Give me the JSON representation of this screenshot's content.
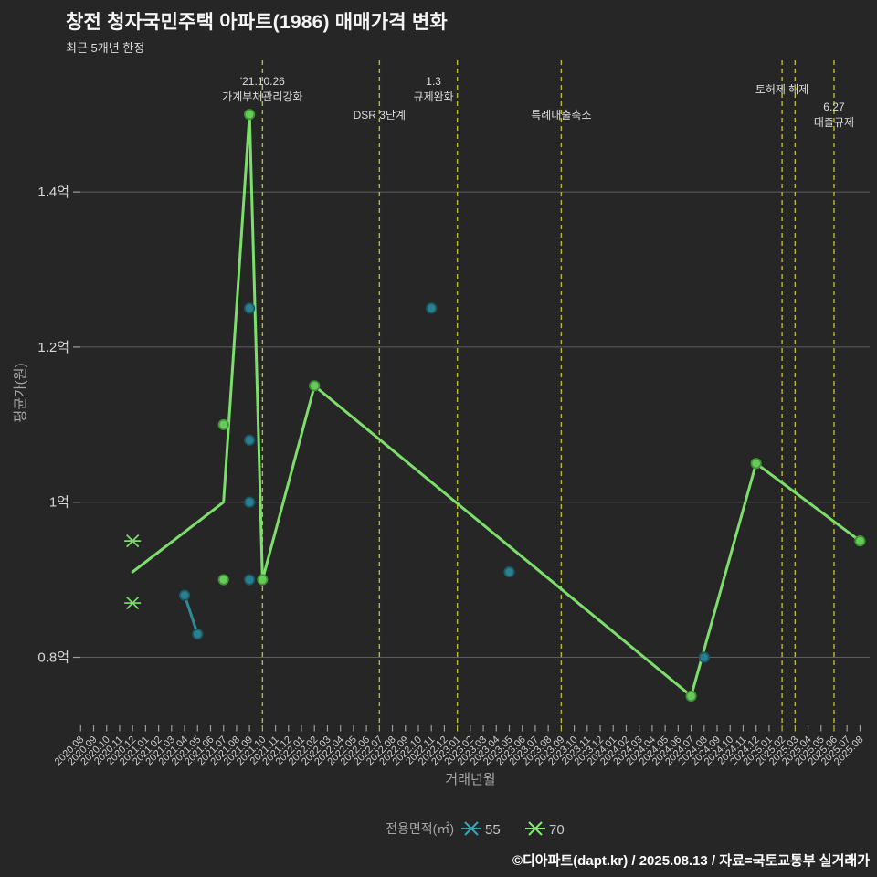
{
  "header": {
    "title": "창전 청자국민주택 아파트(1986) 매매가격 변화",
    "subtitle": "최근 5개년 한정"
  },
  "footer": {
    "credit": "©디아파트(dapt.kr) / 2025.08.13 / 자료=국토교통부 실거래가"
  },
  "colors": {
    "background": "#262626",
    "grid": "#5f5f5f",
    "event_line": "#b9bc2e",
    "series_55": "#2e8c97",
    "series_70": "#7dde6c"
  },
  "chart_data": {
    "type": "line",
    "title": "창전 청자국민주택 아파트(1986) 매매가격 변화",
    "subtitle": "최근 5개년 한정",
    "xlabel": "거래년월",
    "ylabel": "평균가(원)",
    "ylim": [
      0.71,
      1.57
    ],
    "grid": true,
    "event_color": "#b9bc2e",
    "y_ticks": [
      {
        "label": "0.8억",
        "value": 0.8
      },
      {
        "label": "1억",
        "value": 1.0
      },
      {
        "label": "1.2억",
        "value": 1.2
      },
      {
        "label": "1.4억",
        "value": 1.4
      }
    ],
    "x_categories": [
      "2020.08",
      "2020.09",
      "2020.10",
      "2020.11",
      "2020.12",
      "2021.01",
      "2021.02",
      "2021.03",
      "2021.04",
      "2021.05",
      "2021.06",
      "2021.07",
      "2021.08",
      "2021.09",
      "2021.10",
      "2021.11",
      "2021.12",
      "2022.01",
      "2022.02",
      "2022.03",
      "2022.04",
      "2022.05",
      "2022.06",
      "2022.07",
      "2022.08",
      "2022.09",
      "2022.10",
      "2022.11",
      "2022.12",
      "2023.01",
      "2023.02",
      "2023.03",
      "2023.04",
      "2023.05",
      "2023.06",
      "2023.07",
      "2023.08",
      "2023.09",
      "2023.10",
      "2023.11",
      "2023.12",
      "2024.01",
      "2024.02",
      "2024.03",
      "2024.04",
      "2024.05",
      "2024.06",
      "2024.07",
      "2024.08",
      "2024.09",
      "2024.10",
      "2024.11",
      "2024.12",
      "2025.01",
      "2025.02",
      "2025.03",
      "2025.04",
      "2025.05",
      "2025.06",
      "2025.07",
      "2025.08"
    ],
    "series": [
      {
        "name": "55",
        "color": "#2e8c97",
        "legend_color": "#3aa6b2",
        "dot_fill": "#2c7f8e",
        "dot_edge": "#1a5a66",
        "points": [
          [
            "2021.04",
            0.88
          ],
          [
            "2021.05",
            0.83
          ]
        ]
      },
      {
        "name": "70",
        "color": "#7dde6c",
        "legend_color": "#8ae878",
        "dot_fill": "#68ca59",
        "dot_edge": "#3f9336",
        "points": [
          [
            "2020.12",
            0.91
          ],
          [
            "2021.07",
            1.0
          ],
          [
            "2021.09",
            1.5
          ],
          [
            "2021.10",
            0.9
          ],
          [
            "2022.02",
            1.15
          ],
          [
            "2024.07",
            0.75
          ],
          [
            "2024.12",
            1.05
          ],
          [
            "2025.08",
            0.95
          ]
        ]
      }
    ],
    "scatter": [
      {
        "x": "2020.12",
        "y": 0.95,
        "series": "70",
        "marker": "x"
      },
      {
        "x": "2020.12",
        "y": 0.87,
        "series": "70",
        "marker": "x"
      },
      {
        "x": "2021.04",
        "y": 0.88,
        "series": "55",
        "marker": "o"
      },
      {
        "x": "2021.05",
        "y": 0.83,
        "series": "55",
        "marker": "o"
      },
      {
        "x": "2021.07",
        "y": 1.1,
        "series": "70",
        "marker": "o"
      },
      {
        "x": "2021.07",
        "y": 0.9,
        "series": "70",
        "marker": "o"
      },
      {
        "x": "2021.09",
        "y": 1.5,
        "series": "70",
        "marker": "o"
      },
      {
        "x": "2021.09",
        "y": 1.25,
        "series": "55",
        "marker": "o"
      },
      {
        "x": "2021.09",
        "y": 1.08,
        "series": "55",
        "marker": "o"
      },
      {
        "x": "2021.09",
        "y": 1.0,
        "series": "55",
        "marker": "o"
      },
      {
        "x": "2021.09",
        "y": 0.9,
        "series": "55",
        "marker": "o"
      },
      {
        "x": "2021.10",
        "y": 0.9,
        "series": "70",
        "marker": "o"
      },
      {
        "x": "2022.02",
        "y": 1.15,
        "series": "70",
        "marker": "o"
      },
      {
        "x": "2022.11",
        "y": 1.25,
        "series": "55",
        "marker": "o"
      },
      {
        "x": "2023.05",
        "y": 0.91,
        "series": "55",
        "marker": "o"
      },
      {
        "x": "2024.07",
        "y": 0.75,
        "series": "70",
        "marker": "o"
      },
      {
        "x": "2024.08",
        "y": 0.8,
        "series": "55",
        "marker": "o"
      },
      {
        "x": "2024.12",
        "y": 1.05,
        "series": "70",
        "marker": "o"
      },
      {
        "x": "2025.08",
        "y": 0.95,
        "series": "70",
        "marker": "o"
      }
    ],
    "events": [
      {
        "x": "2021.10",
        "lines": [
          "'21.10.26",
          "가계부채관리강화"
        ],
        "y": 93
      },
      {
        "x": "2022.07",
        "lines": [
          "DSR 3단계"
        ],
        "y": 130
      },
      {
        "x": "2023.01",
        "lines": [
          "1.3",
          "규제완화"
        ],
        "y": 93,
        "dx": -26
      },
      {
        "x": "2023.09",
        "lines": [
          "특례대출축소"
        ],
        "y": 130
      },
      {
        "x": "2025.02",
        "lines": [
          "토허제 해제"
        ],
        "y": 102
      },
      {
        "x": "2025.03",
        "lines": []
      },
      {
        "x": "2025.06",
        "lines": [
          "6.27",
          "대출규제"
        ],
        "y": 121
      }
    ],
    "legend": {
      "title": "전용면적(㎡)",
      "position": "bottom-center",
      "items": [
        {
          "label": "55"
        },
        {
          "label": "70"
        }
      ]
    }
  }
}
